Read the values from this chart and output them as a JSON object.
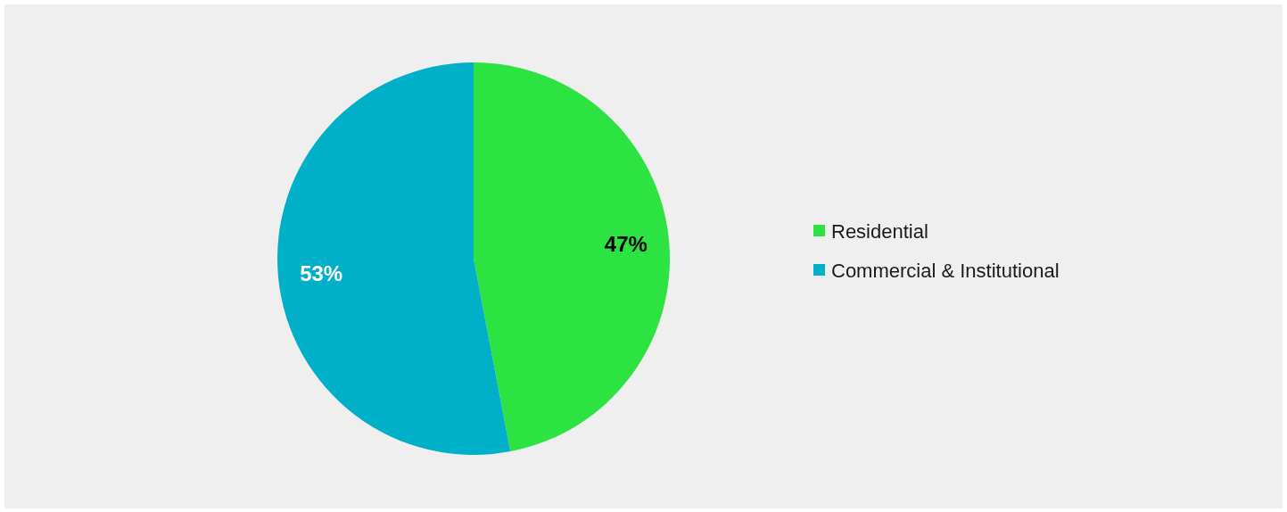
{
  "chart_data": {
    "type": "pie",
    "categories": [
      "Residential",
      "Commercial & Institutional"
    ],
    "values": [
      47,
      53
    ],
    "colors": [
      "#2ce342",
      "#00b0c8"
    ],
    "value_labels": [
      "47%",
      "53%"
    ],
    "legend": "right"
  }
}
